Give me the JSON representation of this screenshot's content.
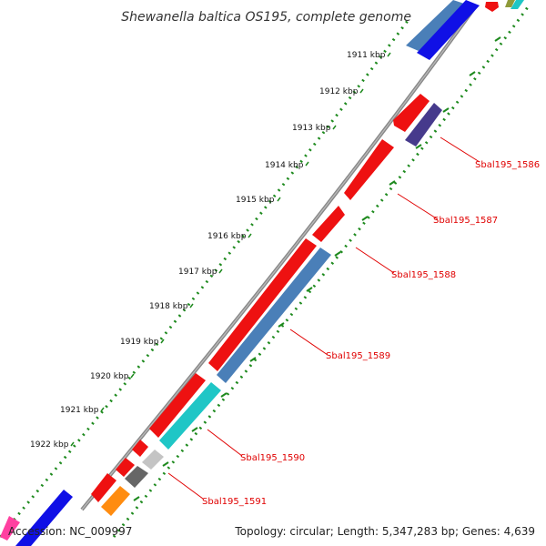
{
  "title": "Shewanella baltica OS195, complete genome",
  "footer": {
    "accession": "Accession: NC_009997",
    "summary": "Topology: circular; Length: 5,347,283 bp; Genes: 4,639"
  },
  "colors": {
    "backbone": "#8f8f8f",
    "tick_dots": "#1e8a1e",
    "gene_label": "#e00000",
    "red": "#ee1111",
    "steelblue": "#4a7fb8",
    "cyan": "#1fc6c6",
    "navy": "#463a8c",
    "blue": "#1010e6",
    "gray": "#666666",
    "lightgray": "#c4c4c4",
    "orange": "#ff8c10",
    "pink": "#ff40a0"
  },
  "scale_ticks": [
    "1911 kbp",
    "1912 kbp",
    "1913 kbp",
    "1914 kbp",
    "1915 kbp",
    "1916 kbp",
    "1917 kbp",
    "1918 kbp",
    "1919 kbp",
    "1920 kbp",
    "1921 kbp",
    "1922 kbp"
  ],
  "gene_labels": [
    "Sbal195_1586",
    "Sbal195_1587",
    "Sbal195_1588",
    "Sbal195_1589",
    "Sbal195_1590",
    "Sbal195_1591"
  ]
}
